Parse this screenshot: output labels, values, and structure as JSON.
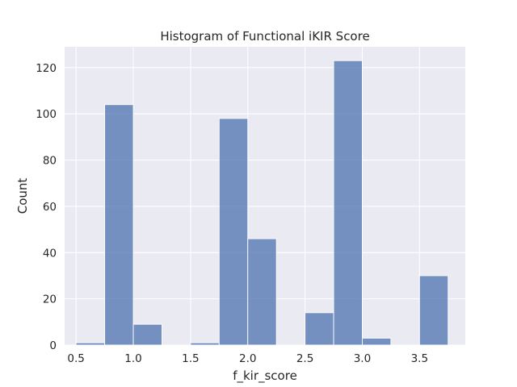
{
  "chart_data": {
    "type": "bar",
    "title": "Histogram of Functional iKIR Score",
    "xlabel": "f_kir_score",
    "ylabel": "Count",
    "xlim": [
      0.4,
      3.9
    ],
    "ylim": [
      0,
      129
    ],
    "xticks": [
      0.5,
      1.0,
      1.5,
      2.0,
      2.5,
      3.0,
      3.5
    ],
    "xtick_labels": [
      "0.5",
      "1.0",
      "1.5",
      "2.0",
      "2.5",
      "3.0",
      "3.5"
    ],
    "yticks": [
      0,
      20,
      40,
      60,
      80,
      100,
      120
    ],
    "ytick_labels": [
      "0",
      "20",
      "40",
      "60",
      "80",
      "100",
      "120"
    ],
    "grid": true,
    "bar_color": "#4c72b0",
    "background_color": "#eaeaf2",
    "bins": [
      {
        "x0": 0.5,
        "x1": 0.75,
        "count": 1
      },
      {
        "x0": 0.75,
        "x1": 1.0,
        "count": 104
      },
      {
        "x0": 1.0,
        "x1": 1.25,
        "count": 9
      },
      {
        "x0": 1.25,
        "x1": 1.5,
        "count": 0
      },
      {
        "x0": 1.5,
        "x1": 1.75,
        "count": 1
      },
      {
        "x0": 1.75,
        "x1": 2.0,
        "count": 98
      },
      {
        "x0": 2.0,
        "x1": 2.25,
        "count": 46
      },
      {
        "x0": 2.25,
        "x1": 2.5,
        "count": 0
      },
      {
        "x0": 2.5,
        "x1": 2.75,
        "count": 14
      },
      {
        "x0": 2.75,
        "x1": 3.0,
        "count": 123
      },
      {
        "x0": 3.0,
        "x1": 3.25,
        "count": 3
      },
      {
        "x0": 3.25,
        "x1": 3.5,
        "count": 0
      },
      {
        "x0": 3.5,
        "x1": 3.75,
        "count": 30
      }
    ]
  }
}
